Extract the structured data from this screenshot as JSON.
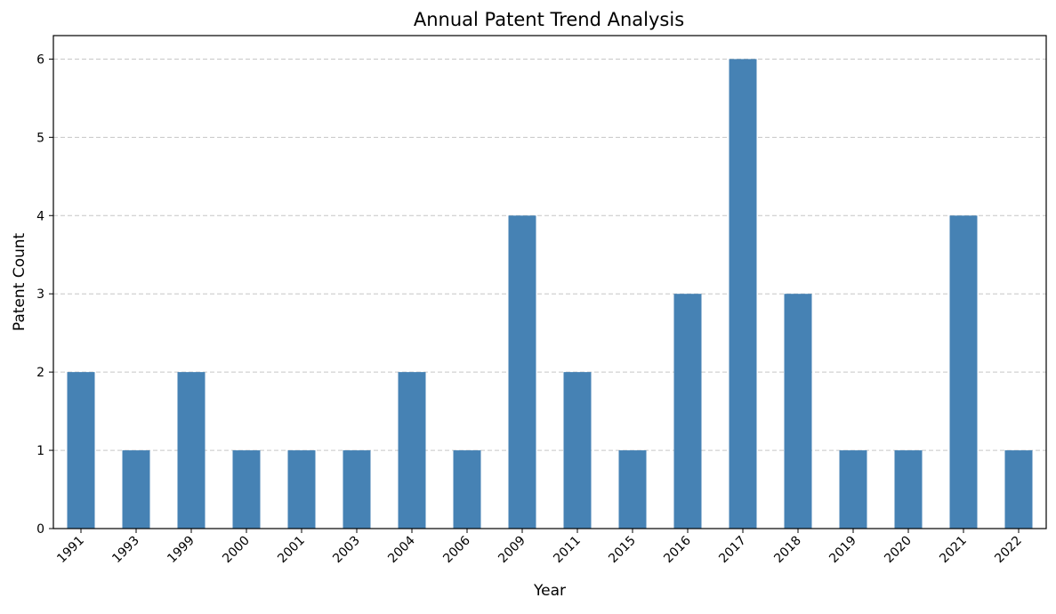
{
  "chart_data": {
    "type": "bar",
    "title": "Annual Patent Trend Analysis",
    "xlabel": "Year",
    "ylabel": "Patent Count",
    "categories": [
      "1991",
      "1993",
      "1999",
      "2000",
      "2001",
      "2003",
      "2004",
      "2006",
      "2009",
      "2011",
      "2015",
      "2016",
      "2017",
      "2018",
      "2019",
      "2020",
      "2021",
      "2022"
    ],
    "values": [
      2,
      1,
      2,
      1,
      1,
      1,
      2,
      1,
      4,
      2,
      1,
      3,
      6,
      3,
      1,
      1,
      4,
      1
    ],
    "ylim": [
      0,
      6.3
    ],
    "yticks": [
      0,
      1,
      2,
      3,
      4,
      5,
      6
    ],
    "grid": "y",
    "bar_color": "#4682b4",
    "legend": "none"
  }
}
